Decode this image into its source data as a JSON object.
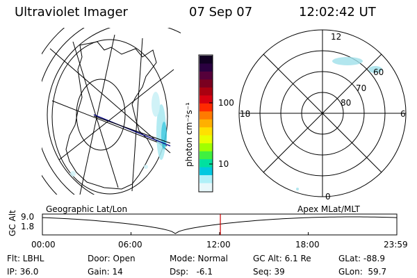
{
  "header": {
    "instrument": "Ultraviolet Imager",
    "date": "07 Sep 07",
    "time": "12:02:42 UT"
  },
  "colorbar": {
    "label": "photon cm⁻²s⁻¹",
    "ticks": [
      "100",
      "10"
    ],
    "scale": "log",
    "colors_top_to_bottom": [
      "#110022",
      "#2a0040",
      "#55003a",
      "#7a0020",
      "#aa0010",
      "#d80010",
      "#ff2a00",
      "#ff7a00",
      "#ffb000",
      "#ffe000",
      "#e8ff00",
      "#a0ff00",
      "#40f040",
      "#00e0a0",
      "#00c8e0",
      "#b0f0f8",
      "#e8f8fb"
    ]
  },
  "polar_plot": {
    "mlt_labels": [
      "12",
      "18",
      "6",
      "0"
    ],
    "lat_labels": [
      "60",
      "70",
      "80"
    ],
    "lat_rings_deg": [
      80,
      70,
      60,
      50
    ]
  },
  "timeline": {
    "axis_label": "GC Alt",
    "y_top": "9.0",
    "y_bottom": "1.8",
    "left_title": "Geographic Lat/Lon",
    "right_title": "Apex MLat/MLT",
    "x_ticks": [
      "00:00",
      "06:00",
      "12:00",
      "18:00",
      "23:59"
    ],
    "current_time_hours": 12.05,
    "marker_color": "#cc0000"
  },
  "info": {
    "flt": "Flt: LBHL",
    "ip": "IP: 36.0",
    "door": "Door: Open",
    "gain": "Gain: 14",
    "mode": "Mode: Normal",
    "dsp": "Dsp:   -6.1",
    "gcalt": "GC Alt: 6.1 Re",
    "seq": "Seq: 39",
    "glat": "GLat: -88.9",
    "glon": "GLon:  59.7"
  }
}
